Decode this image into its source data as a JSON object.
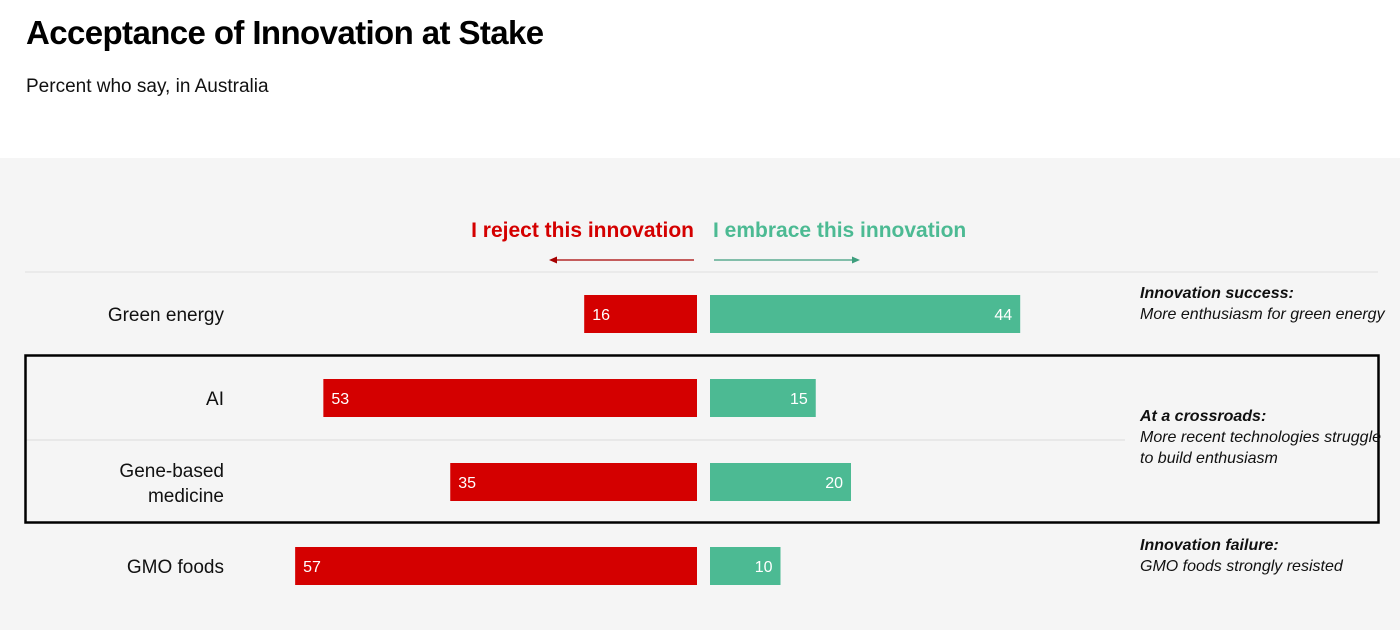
{
  "title": "Acceptance of Innovation at Stake",
  "subtitle": "Percent who say, in Australia",
  "chart_data": {
    "type": "bar",
    "orientation": "diverging-horizontal",
    "categories": [
      "Green energy",
      "AI",
      "Gene-based medicine",
      "GMO foods"
    ],
    "series": [
      {
        "name": "I reject this innovation",
        "direction": "left",
        "color": "#d40000",
        "values": [
          16,
          53,
          35,
          57
        ]
      },
      {
        "name": "I embrace this innovation",
        "direction": "right",
        "color": "#4cba93",
        "values": [
          44,
          15,
          20,
          10
        ]
      }
    ],
    "annotations": [
      {
        "heading": "Innovation success:",
        "body": "More enthusiasm for green energy"
      },
      {
        "heading": "At a crossroads:",
        "body": "More recent technologies struggle to build enthusiasm"
      },
      {
        "heading": "Innovation failure:",
        "body": "GMO foods strongly resisted"
      }
    ],
    "grid": false
  }
}
